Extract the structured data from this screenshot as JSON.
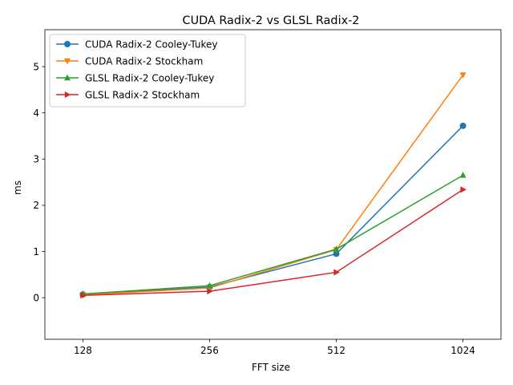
{
  "chart_data": {
    "type": "line",
    "title": "CUDA Radix-2 vs GLSL Radix-2",
    "xlabel": "FFT size",
    "ylabel": "ms",
    "categories": [
      "128",
      "256",
      "512",
      "1024"
    ],
    "ylim": [
      -0.9,
      5.8
    ],
    "yticks": [
      0,
      1,
      2,
      3,
      4,
      5
    ],
    "grid": false,
    "legend_position": "top-left",
    "series": [
      {
        "name": "CUDA Radix-2 Cooley-Tukey",
        "values": [
          0.07,
          0.23,
          0.95,
          3.72
        ],
        "color": "#1f77b4",
        "marker": "circle"
      },
      {
        "name": "CUDA Radix-2 Stockham",
        "values": [
          0.06,
          0.21,
          1.04,
          4.82
        ],
        "color": "#ff7f0e",
        "marker": "triangle-down"
      },
      {
        "name": "GLSL Radix-2 Cooley-Tukey",
        "values": [
          0.08,
          0.26,
          1.05,
          2.65
        ],
        "color": "#2ca02c",
        "marker": "triangle-up"
      },
      {
        "name": "GLSL Radix-2 Stockham",
        "values": [
          0.05,
          0.14,
          0.55,
          2.34
        ],
        "color": "#d62728",
        "marker": "triangle-right"
      }
    ]
  }
}
